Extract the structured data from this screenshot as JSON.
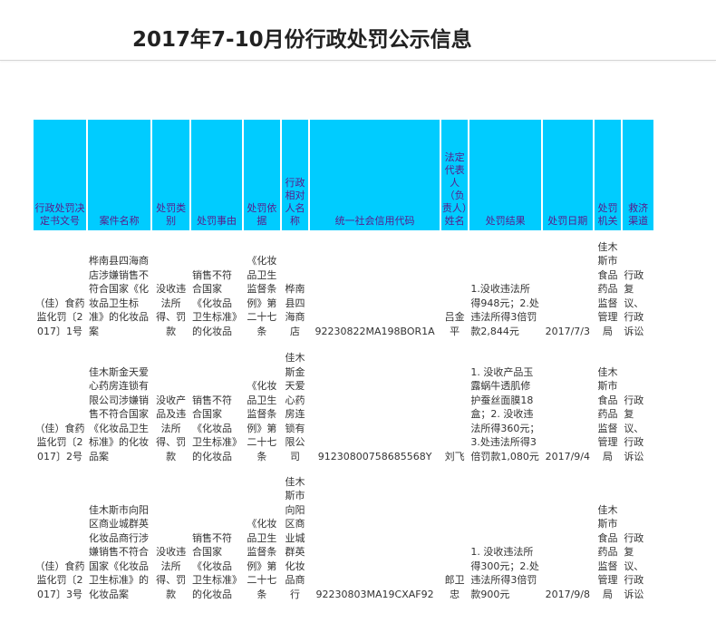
{
  "page": {
    "title": "2017年7-10月份行政处罚公示信息"
  },
  "table": {
    "headers": [
      "行政处罚决定书文号",
      "案件名称",
      "处罚类别",
      "处罚事由",
      "处罚依据",
      "行政相对人名称",
      "统一社会信用代码",
      "法定代表人（负责人）姓名",
      "处罚结果",
      "处罚日期",
      "处罚机关",
      "救济渠道"
    ],
    "rows": [
      {
        "doc_no": "（佳）食药监化罚〔2017〕1号",
        "case_name": "桦南县四海商店涉嫌销售不符合国家《化妆品卫生标准》的化妆品案",
        "category": "没收违法所得、罚款",
        "reason": "销售不符合国家《化妆品卫生标准》的化妆品",
        "basis": "《化妆品卫生监督条例》第二十七条",
        "party": "桦南县四海商店",
        "credit_code": "92230822MA198BOR1A",
        "legal_rep": "吕金平",
        "result": "1.没收违法所得948元；2.处违法所得3倍罚款2,844元",
        "date": "2017/7/3",
        "authority": "佳木斯市食品药品监督管理局",
        "remedy": "行政复议、行政诉讼"
      },
      {
        "doc_no": "（佳）食药监化罚〔2017〕2号",
        "case_name": "佳木斯金天爱心药房连锁有限公司涉嫌销售不符合国家《化妆品卫生标准》的化妆品案",
        "category": "没收产品及违法所得、罚款",
        "reason": "销售不符合国家《化妆品卫生标准》的化妆品",
        "basis": "《化妆品卫生监督条例》第二十七条",
        "party": "佳木斯金天爱心药房连锁有限公司",
        "credit_code": "91230800758685568Y",
        "legal_rep": "刘飞",
        "result": "1. 没收产品玉露蜗牛透肌修护蚕丝面膜18盒；2. 没收违法所得360元；3.处违法所得3倍罚款1,080元",
        "date": "2017/9/4",
        "authority": "佳木斯市食品药品监督管理局",
        "remedy": "行政复议、行政诉讼"
      },
      {
        "doc_no": "（佳）食药监化罚〔2017〕3号",
        "case_name": "佳木斯市向阳区商业城群英化妆品商行涉嫌销售不符合国家《化妆品卫生标准》的化妆品案",
        "category": "没收违法所得、罚款",
        "reason": "销售不符合国家《化妆品卫生标准》的化妆品",
        "basis": "《化妆品卫生监督条例》第二十七条",
        "party": "佳木斯市向阳区商业城群英化妆品商行",
        "credit_code": "92230803MA19CXAF92",
        "legal_rep": "郎卫忠",
        "result": "1. 没收违法所得300元；2.处违法所得3倍罚款900元",
        "date": "2017/9/8",
        "authority": "佳木斯市食品药品监督管理局",
        "remedy": "行政复议、行政诉讼"
      }
    ]
  }
}
